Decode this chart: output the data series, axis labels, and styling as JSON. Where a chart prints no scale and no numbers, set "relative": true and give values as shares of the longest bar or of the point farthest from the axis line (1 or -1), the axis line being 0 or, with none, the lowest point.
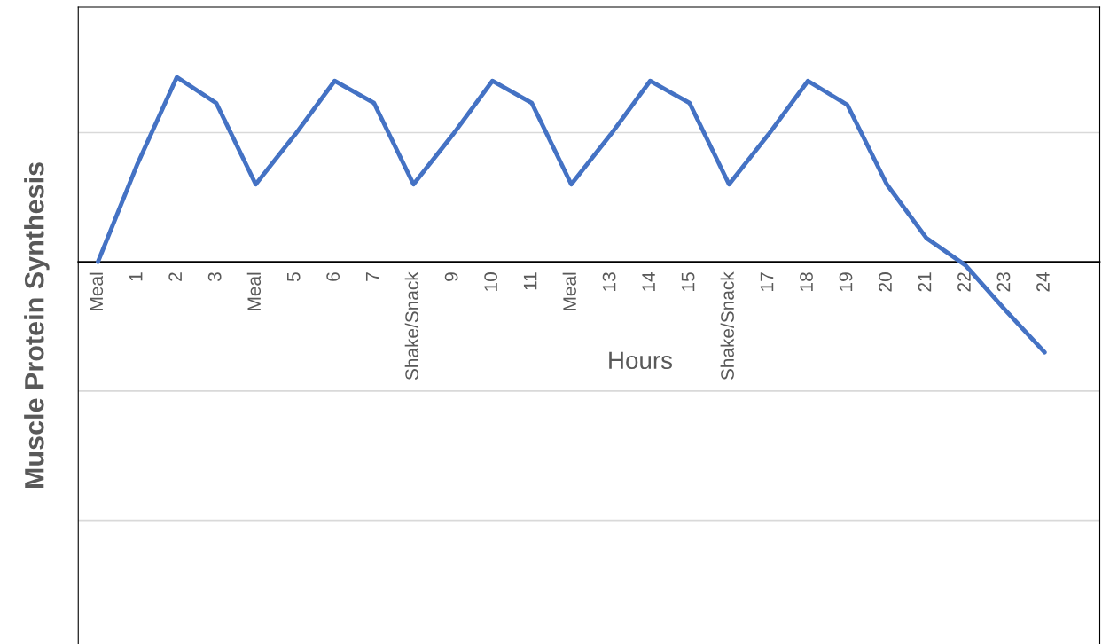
{
  "chart_data": {
    "type": "line",
    "relative": true,
    "xlabel": "Hours",
    "ylabel": "Muscle Protein Synthesis",
    "ref_lines": [
      {
        "axis": "y",
        "value": 0.7,
        "color": "#d9d9d9"
      },
      {
        "axis": "y",
        "value": -0.7,
        "color": "#d9d9d9"
      },
      {
        "axis": "y",
        "value": -1.4,
        "color": "#d9d9d9"
      }
    ],
    "categories": [
      "Meal",
      "1",
      "2",
      "3",
      "Meal",
      "5",
      "6",
      "7",
      "Shake/Snack",
      "9",
      "10",
      "11",
      "Meal",
      "13",
      "14",
      "15",
      "Shake/Snack",
      "17",
      "18",
      "19",
      "20",
      "21",
      "22",
      "23",
      "24"
    ],
    "series": [
      {
        "color": "#4472c4",
        "values": [
          0,
          0.53,
          1,
          0.86,
          0.42,
          0.69,
          0.98,
          0.86,
          0.42,
          0.69,
          0.98,
          0.86,
          0.42,
          0.69,
          0.98,
          0.86,
          0.42,
          0.69,
          0.98,
          0.85,
          0.42,
          0.13,
          -0.02,
          -0.26,
          -0.49
        ]
      }
    ]
  }
}
